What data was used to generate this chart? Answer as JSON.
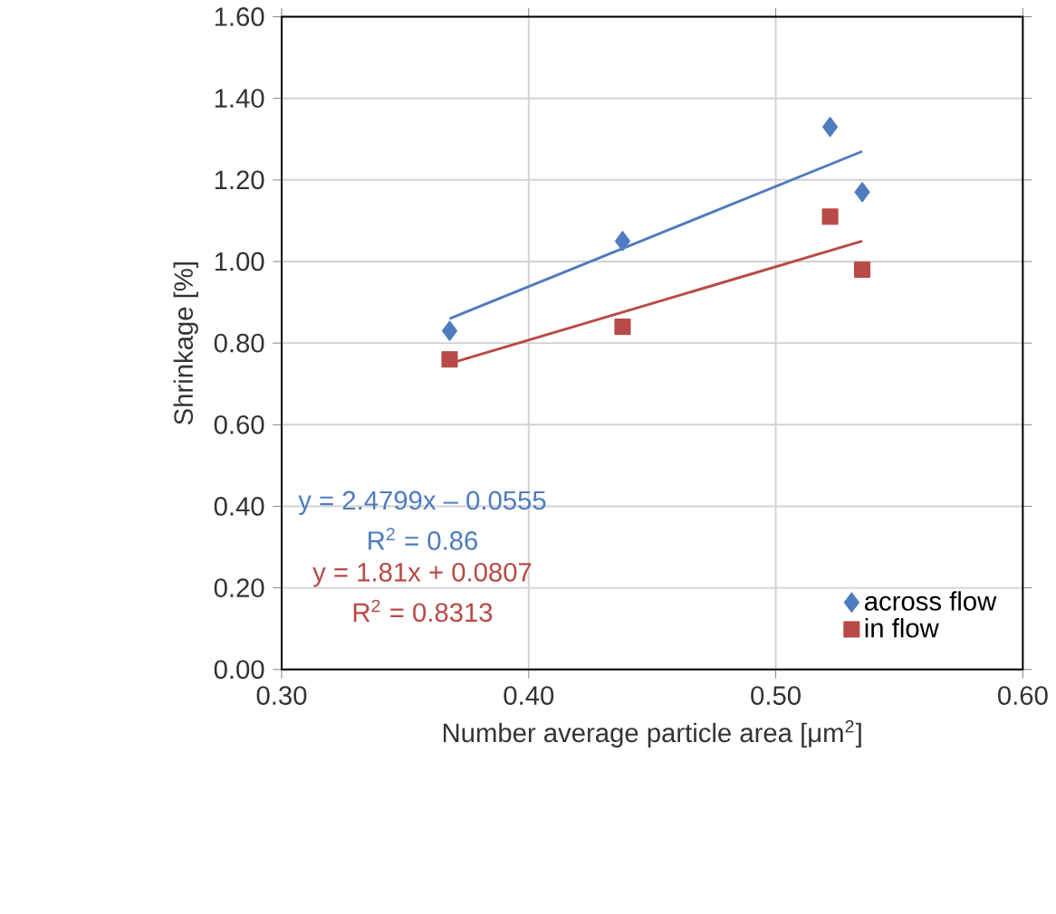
{
  "chart_data": {
    "type": "scatter",
    "xlabel": "Number average particle area [μm$^{2}$]",
    "ylabel": "Shrinkage [%]",
    "xlim": [
      0.3,
      0.6
    ],
    "ylim": [
      0,
      1.6
    ],
    "xticks": [
      {
        "value": 0.3,
        "label": "0.30"
      },
      {
        "value": 0.4,
        "label": "0.40"
      },
      {
        "value": 0.5,
        "label": "0.50"
      },
      {
        "value": 0.6,
        "label": "0.60"
      }
    ],
    "yticks": [
      {
        "value": 0,
        "label": "0.00"
      },
      {
        "value": 0.2,
        "label": "0.20"
      },
      {
        "value": 0.4,
        "label": "0.40"
      },
      {
        "value": 0.6,
        "label": "0.60"
      },
      {
        "value": 0.8,
        "label": "0.80"
      },
      {
        "value": 1.0,
        "label": "1.00"
      },
      {
        "value": 1.2,
        "label": "1.20"
      },
      {
        "value": 1.4,
        "label": "1.40"
      },
      {
        "value": 1.6,
        "label": "1.60"
      }
    ],
    "grid": true,
    "legend": "bottom right",
    "series": [
      {
        "name": "across flow",
        "marker": "diamond",
        "color": "#4f7bbf",
        "x": [
          0.368,
          0.438,
          0.522,
          0.535
        ],
        "values": [
          0.83,
          1.05,
          1.33,
          1.17
        ]
      },
      {
        "name": "in flow",
        "marker": "square",
        "color": "#b84a47",
        "x": [
          0.368,
          0.438,
          0.522,
          0.535
        ],
        "values": [
          0.76,
          0.84,
          1.11,
          0.98
        ]
      },
      {
        "type": "line",
        "marker": "none",
        "color": "#4f7bbf",
        "x": [
          0.368,
          0.535
        ],
        "values": [
          0.86,
          1.27
        ]
      },
      {
        "type": "line",
        "marker": "none",
        "color": "#b84a47",
        "x": [
          0.368,
          0.535
        ],
        "values": [
          0.75,
          1.05
        ]
      }
    ],
    "annotations": [
      "y = 2.4799x – 0.0555",
      "R$^{2}$ = 0.86",
      "y = 1.81x + 0.0807",
      "R$^{2}$ = 0.8313"
    ]
  }
}
